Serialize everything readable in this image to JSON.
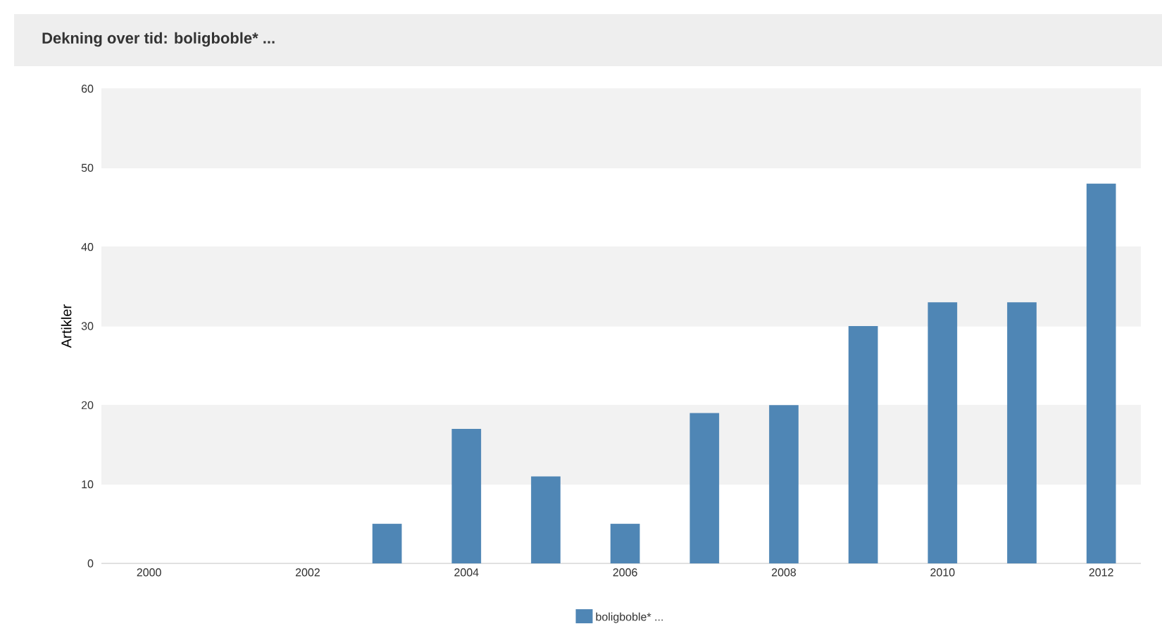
{
  "chart_data": {
    "type": "bar",
    "title": "Dekning over tid: boligboble* ...",
    "ylabel": "Artikler",
    "x": [
      2000,
      2001,
      2002,
      2003,
      2004,
      2005,
      2006,
      2007,
      2008,
      2009,
      2010,
      2011,
      2012
    ],
    "series": [
      {
        "name": "boligboble* ...",
        "color": "#4f86b5",
        "values": [
          0,
          0,
          0,
          5,
          17,
          11,
          5,
          19,
          20,
          30,
          33,
          33,
          48
        ]
      }
    ],
    "xlim": [
      1999.4,
      2012.5
    ],
    "xticks": [
      2000,
      2002,
      2004,
      2006,
      2008,
      2010,
      2012
    ],
    "ylim": [
      0,
      60
    ],
    "yticks": [
      0,
      10,
      20,
      30,
      40,
      50,
      60
    ],
    "grid": "y",
    "legend": "bottom"
  }
}
